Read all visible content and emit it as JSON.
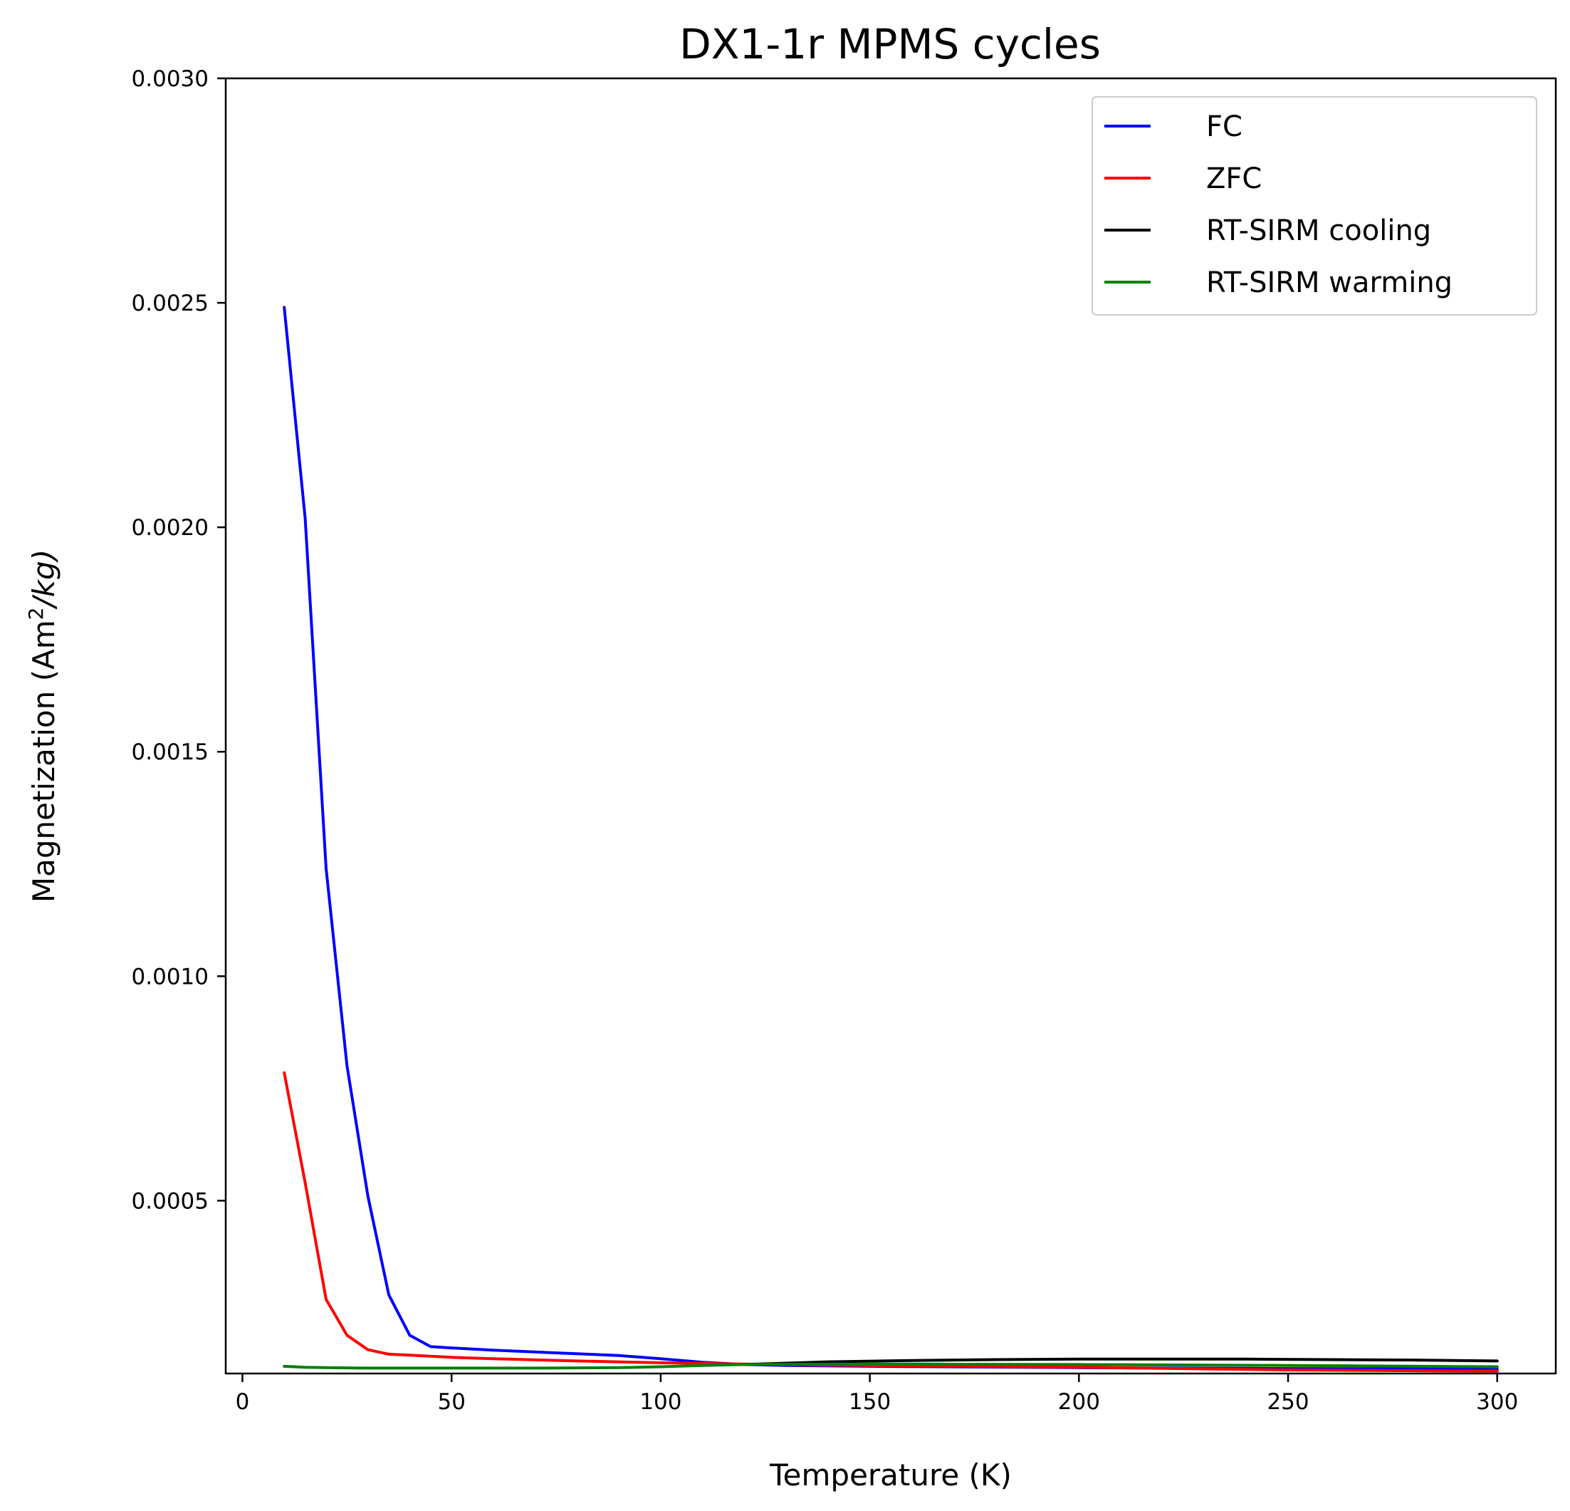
{
  "chart_data": {
    "type": "line",
    "title": "DX1-1r MPMS cycles",
    "xlabel": "Temperature (K)",
    "ylabel_prefix": "Magnetization (Am",
    "ylabel_sup": "2",
    "ylabel_suffix": "/kg)",
    "xlim": [
      -4,
      314
    ],
    "ylim": [
      0.000115,
      0.003
    ],
    "xticks": [
      0,
      50,
      100,
      150,
      200,
      250,
      300
    ],
    "xtick_labels": [
      "0",
      "50",
      "100",
      "150",
      "200",
      "250",
      "300"
    ],
    "yticks": [
      0.0005,
      0.001,
      0.0015,
      0.002,
      0.0025,
      0.003
    ],
    "ytick_labels": [
      "0.0005",
      "0.0010",
      "0.0015",
      "0.0020",
      "0.0025",
      "0.0030"
    ],
    "legend_position": "top-right",
    "grid": false,
    "series": [
      {
        "name": "FC",
        "color": "#0000ff",
        "x": [
          10,
          15,
          20,
          25,
          30,
          35,
          40,
          45,
          50,
          60,
          70,
          80,
          90,
          100,
          110,
          120,
          130,
          150,
          200,
          250,
          300
        ],
        "y": [
          0.00249,
          0.00202,
          0.00124,
          0.0008,
          0.00051,
          0.00029,
          0.0002,
          0.000175,
          0.000172,
          0.000167,
          0.000163,
          0.000159,
          0.000155,
          0.000148,
          0.00014,
          0.000135,
          0.000133,
          0.000131,
          0.000128,
          0.000126,
          0.000125
        ]
      },
      {
        "name": "ZFC",
        "color": "#ff0000",
        "x": [
          10,
          15,
          20,
          25,
          30,
          35,
          40,
          50,
          60,
          80,
          100,
          120,
          150,
          200,
          250,
          300
        ],
        "y": [
          0.000785,
          0.00054,
          0.00028,
          0.0002,
          0.000168,
          0.000158,
          0.000156,
          0.000151,
          0.000148,
          0.000143,
          0.000139,
          0.000136,
          0.000133,
          0.000129,
          0.000123,
          0.00012
        ]
      },
      {
        "name": "RT-SIRM cooling",
        "color": "#000000",
        "x": [
          120,
          140,
          160,
          180,
          200,
          220,
          240,
          260,
          280,
          300
        ],
        "y": [
          0.000135,
          0.000141,
          0.000144,
          0.000146,
          0.000147,
          0.000147,
          0.000147,
          0.000146,
          0.000145,
          0.000143
        ]
      },
      {
        "name": "RT-SIRM warming",
        "color": "#008000",
        "x": [
          10,
          15,
          20,
          30,
          50,
          70,
          90,
          100,
          110,
          120,
          140,
          160,
          200,
          250,
          300
        ],
        "y": [
          0.000131,
          0.000129,
          0.000128,
          0.000127,
          0.000127,
          0.000127,
          0.000128,
          0.00013,
          0.000133,
          0.000135,
          0.000136,
          0.000136,
          0.000135,
          0.000133,
          0.00013
        ]
      }
    ]
  }
}
